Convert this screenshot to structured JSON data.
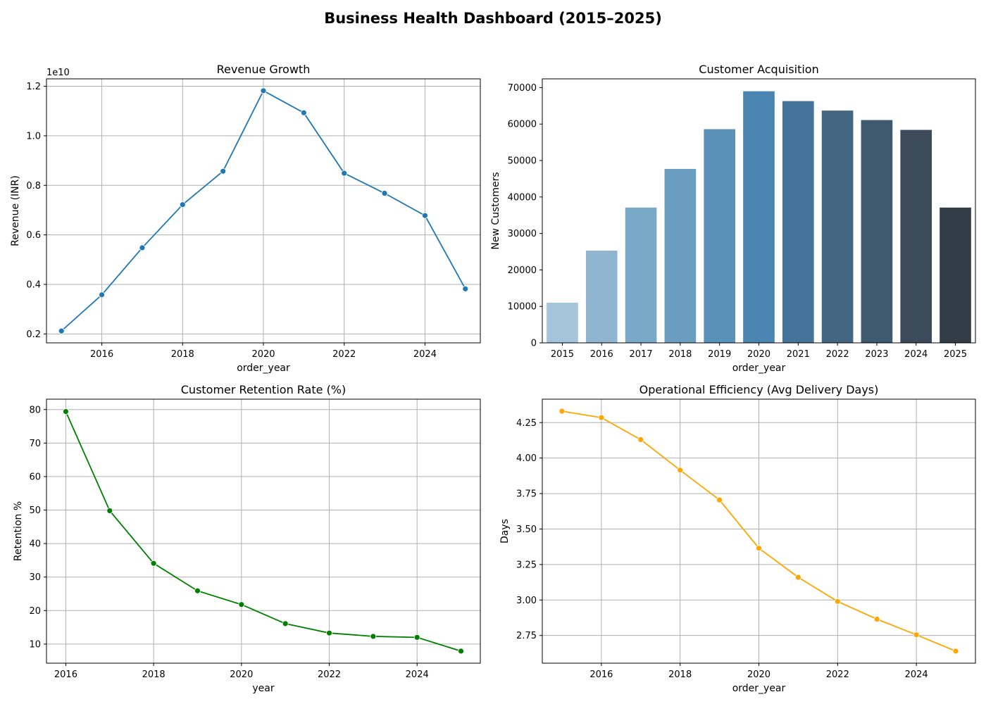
{
  "title": "Business Health Dashboard (2015–2025)",
  "chart_data": [
    {
      "type": "line",
      "title": "Revenue Growth",
      "xlabel": "order_year",
      "ylabel": "Revenue (INR)",
      "y_offset_label": "1e10",
      "color": "#1f77b4",
      "x": [
        2015,
        2016,
        2017,
        2018,
        2019,
        2020,
        2021,
        2022,
        2023,
        2024,
        2025
      ],
      "series": [
        {
          "values": [
            2120000000.0,
            3580000000.0,
            5480000000.0,
            7220000000.0,
            8570000000.0,
            11820000000.0,
            10930000000.0,
            8490000000.0,
            7680000000.0,
            6780000000.0,
            3820000000.0
          ]
        }
      ],
      "xlim": [
        2014.63,
        2025.37
      ],
      "ylim": [
        1640000000.0,
        12300000000.0
      ],
      "xticks": [
        "2016",
        "2018",
        "2020",
        "2022",
        "2024"
      ],
      "yticks": [
        "0.2",
        "0.4",
        "0.6",
        "0.8",
        "1.0",
        "1.2"
      ],
      "grid": true
    },
    {
      "type": "bar",
      "title": "Customer Acquisition",
      "xlabel": "order_year",
      "ylabel": "New Customers",
      "categories": [
        "2015",
        "2016",
        "2017",
        "2018",
        "2019",
        "2020",
        "2021",
        "2022",
        "2023",
        "2024",
        "2025"
      ],
      "values": [
        11000,
        25300,
        37100,
        47700,
        58600,
        69000,
        66300,
        63700,
        61100,
        58400,
        37100
      ],
      "colors": [
        "#a3c4db",
        "#8fb5d0",
        "#7aa8c7",
        "#6a9dc0",
        "#5a91b8",
        "#4a84b0",
        "#46739a",
        "#436683",
        "#3f5a6e",
        "#3b4b59",
        "#333d45"
      ],
      "ylim": [
        0,
        72400
      ],
      "yticks": [
        "0",
        "10000",
        "20000",
        "30000",
        "40000",
        "50000",
        "60000",
        "70000"
      ],
      "grid": false
    },
    {
      "type": "line",
      "title": "Customer Retention Rate (%)",
      "xlabel": "year",
      "ylabel": "Retention %",
      "color": "#008000",
      "x": [
        2016,
        2017,
        2018,
        2019,
        2020,
        2021,
        2022,
        2023,
        2024,
        2025
      ],
      "series": [
        {
          "values": [
            79.4,
            49.8,
            34.1,
            25.9,
            21.8,
            16.1,
            13.3,
            12.3,
            12.0,
            7.9
          ]
        }
      ],
      "xlim": [
        2015.56,
        2025.44
      ],
      "ylim": [
        4.3,
        83.1
      ],
      "xticks": [
        "2016",
        "2018",
        "2020",
        "2022",
        "2024"
      ],
      "yticks": [
        "10",
        "20",
        "30",
        "40",
        "50",
        "60",
        "70",
        "80"
      ],
      "grid": true
    },
    {
      "type": "line",
      "title": "Operational Efficiency (Avg Delivery Days)",
      "xlabel": "order_year",
      "ylabel": "Days",
      "color": "#ffa500",
      "x": [
        2015,
        2016,
        2017,
        2018,
        2019,
        2020,
        2021,
        2022,
        2023,
        2024,
        2025
      ],
      "series": [
        {
          "values": [
            4.33,
            4.285,
            4.13,
            3.915,
            3.705,
            3.365,
            3.16,
            2.99,
            2.865,
            2.755,
            2.64
          ]
        }
      ],
      "xlim": [
        2014.5,
        2025.5
      ],
      "ylim": [
        2.555,
        4.415
      ],
      "xticks": [
        "2016",
        "2018",
        "2020",
        "2022",
        "2024"
      ],
      "yticks": [
        "2.75",
        "3.00",
        "3.25",
        "3.50",
        "3.75",
        "4.00",
        "4.25"
      ],
      "grid": true
    }
  ]
}
